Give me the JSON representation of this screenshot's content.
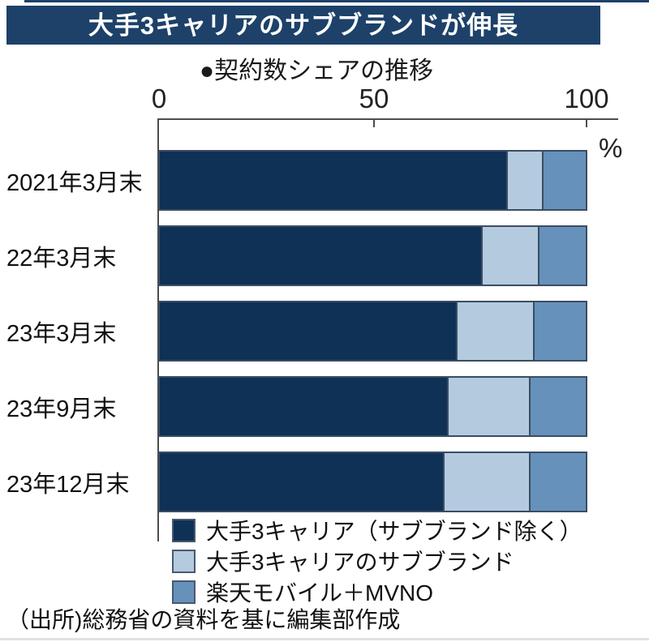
{
  "page": {
    "title": "大手3キャリアのサブブランドが伸長",
    "subtitle": "●契約数シェアの推移",
    "unit_label": "%",
    "source": "（出所)総務省の資料を基に編集部作成"
  },
  "colors": {
    "banner_bg": "#1d4169",
    "banner_text": "#ffffff",
    "bar_border": "#3a4d63",
    "axis": "#4d4d4d"
  },
  "chart_data": {
    "type": "bar",
    "orientation": "horizontal",
    "stacked": true,
    "title": "契約数シェアの推移",
    "xlabel": "%",
    "xlim": [
      0,
      100
    ],
    "x_ticks": [
      0,
      50,
      100
    ],
    "grid": false,
    "legend_position": "bottom",
    "categories": [
      "2021年3月末",
      "22年3月末",
      "23年3月末",
      "23年9月末",
      "23年12月末"
    ],
    "series": [
      {
        "name": "大手3キャリア（サブブランド除く）",
        "color": "#0e3155",
        "values": [
          82,
          76,
          70,
          68,
          67
        ]
      },
      {
        "name": "大手3キャリアのサブブランド",
        "color": "#b4cade",
        "values": [
          8,
          13,
          18,
          19,
          20
        ]
      },
      {
        "name": "楽天モバイル＋MVNO",
        "color": "#6691bb",
        "values": [
          10,
          11,
          12,
          13,
          13
        ]
      }
    ]
  }
}
